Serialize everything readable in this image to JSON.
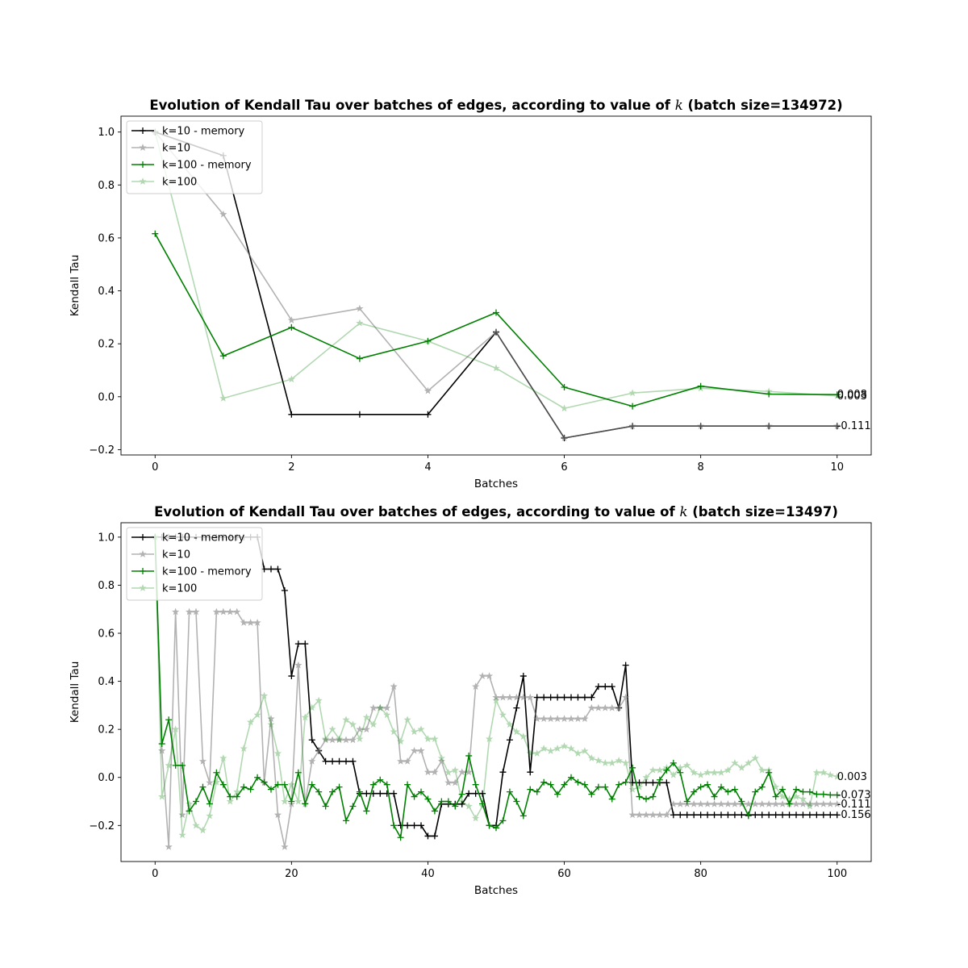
{
  "chart_data": [
    {
      "type": "line",
      "title": "Evolution of Kendall Tau over batches of edges, according to value of",
      "title_k": "k",
      "title_suffix": "(batch size=134972)",
      "xlabel": "Batches",
      "ylabel": "Kendall Tau",
      "xlim": [
        -0.5,
        10.5
      ],
      "ylim": [
        -0.22,
        1.06
      ],
      "xticks": [
        0,
        2,
        4,
        6,
        8,
        10
      ],
      "yticks": [
        -0.2,
        0.0,
        0.2,
        0.4,
        0.6,
        0.8,
        1.0
      ],
      "xtick_labels": [
        "0",
        "2",
        "4",
        "6",
        "8",
        "10"
      ],
      "ytick_labels": [
        "−0.2",
        "0.0",
        "0.2",
        "0.4",
        "0.6",
        "0.8",
        "1.0"
      ],
      "legend": "top-left",
      "x": [
        0,
        1,
        2,
        3,
        4,
        5,
        6,
        7,
        8,
        9,
        10
      ],
      "series": [
        {
          "name": "k=10 - memory",
          "color": "#000000",
          "opacity": 1.0,
          "marker": "plus",
          "values": [
            1.0,
            0.911,
            -0.067,
            -0.067,
            -0.067,
            0.244,
            -0.156,
            -0.111,
            -0.111,
            -0.111,
            -0.111
          ]
        },
        {
          "name": "k=10",
          "color": "#808080",
          "opacity": 0.6,
          "marker": "star",
          "values": [
            1.0,
            0.689,
            0.289,
            0.333,
            0.022,
            0.244,
            -0.156,
            -0.111,
            -0.111,
            -0.111,
            -0.111
          ]
        },
        {
          "name": "k=100 - memory",
          "color": "#008000",
          "opacity": 1.0,
          "marker": "plus",
          "values": [
            0.616,
            0.154,
            0.262,
            0.144,
            0.21,
            0.318,
            0.036,
            -0.036,
            0.04,
            0.01,
            0.008
          ]
        },
        {
          "name": "k=100",
          "color": "#008000",
          "opacity": 0.3,
          "marker": "star",
          "values": [
            1.0,
            -0.006,
            0.066,
            0.278,
            0.21,
            0.108,
            -0.044,
            0.014,
            0.032,
            0.02,
            0.003
          ]
        }
      ],
      "end_labels": [
        {
          "text": "0.008",
          "y": 0.008
        },
        {
          "text": "0.003",
          "y": 0.003
        },
        {
          "text": "-0.111",
          "y": -0.111
        }
      ]
    },
    {
      "type": "line",
      "title": "Evolution of Kendall Tau over batches of edges, according to value of",
      "title_k": "k",
      "title_suffix": "(batch size=13497)",
      "xlabel": "Batches",
      "ylabel": "Kendall Tau",
      "xlim": [
        -5,
        105
      ],
      "ylim": [
        -0.35,
        1.06
      ],
      "xticks": [
        0,
        20,
        40,
        60,
        80,
        100
      ],
      "yticks": [
        -0.2,
        0.0,
        0.2,
        0.4,
        0.6,
        0.8,
        1.0
      ],
      "xtick_labels": [
        "0",
        "20",
        "40",
        "60",
        "80",
        "100"
      ],
      "ytick_labels": [
        "−0.2",
        "0.0",
        "0.2",
        "0.4",
        "0.6",
        "0.8",
        "1.0"
      ],
      "legend": "top-left",
      "x_start": 0,
      "series": [
        {
          "name": "k=10 - memory",
          "color": "#000000",
          "opacity": 1.0,
          "marker": "plus",
          "values": [
            1.0,
            1.0,
            1.0,
            1.0,
            1.0,
            1.0,
            1.0,
            1.0,
            1.0,
            1.0,
            1.0,
            1.0,
            1.0,
            1.0,
            1.0,
            1.0,
            0.867,
            0.867,
            0.867,
            0.778,
            0.422,
            0.556,
            0.556,
            0.156,
            0.111,
            0.067,
            0.067,
            0.067,
            0.067,
            0.067,
            -0.067,
            -0.067,
            -0.067,
            -0.067,
            -0.067,
            -0.067,
            -0.2,
            -0.2,
            -0.2,
            -0.2,
            -0.244,
            -0.244,
            -0.111,
            -0.111,
            -0.111,
            -0.111,
            -0.067,
            -0.067,
            -0.067,
            -0.2,
            -0.2,
            0.022,
            0.156,
            0.289,
            0.422,
            0.022,
            0.333,
            0.333,
            0.333,
            0.333,
            0.333,
            0.333,
            0.333,
            0.333,
            0.333,
            0.378,
            0.378,
            0.378,
            0.289,
            0.467,
            -0.022,
            -0.022,
            -0.022,
            -0.022,
            -0.022,
            -0.022,
            -0.156,
            -0.156,
            -0.156,
            -0.156,
            -0.156,
            -0.156,
            -0.156,
            -0.156,
            -0.156,
            -0.156,
            -0.156,
            -0.156,
            -0.156,
            -0.156,
            -0.156,
            -0.156,
            -0.156,
            -0.156,
            -0.156,
            -0.156,
            -0.156,
            -0.156,
            -0.156,
            -0.156,
            -0.156
          ]
        },
        {
          "name": "k=10",
          "color": "#808080",
          "opacity": 0.6,
          "marker": "star",
          "values": [
            1.0,
            0.111,
            -0.289,
            0.689,
            -0.156,
            0.689,
            0.689,
            0.067,
            -0.022,
            0.689,
            0.689,
            0.689,
            0.689,
            0.644,
            0.644,
            0.644,
            -0.022,
            0.244,
            -0.156,
            -0.289,
            -0.111,
            0.467,
            -0.111,
            0.067,
            0.111,
            0.156,
            0.156,
            0.156,
            0.156,
            0.156,
            0.2,
            0.2,
            0.289,
            0.289,
            0.289,
            0.378,
            0.067,
            0.067,
            0.111,
            0.111,
            0.022,
            0.022,
            0.067,
            -0.022,
            -0.022,
            0.022,
            0.022,
            0.378,
            0.422,
            0.422,
            0.333,
            0.333,
            0.333,
            0.333,
            0.333,
            0.333,
            0.244,
            0.244,
            0.244,
            0.244,
            0.244,
            0.244,
            0.244,
            0.244,
            0.289,
            0.289,
            0.289,
            0.289,
            0.289,
            0.333,
            -0.156,
            -0.156,
            -0.156,
            -0.156,
            -0.156,
            -0.156,
            -0.111,
            -0.111,
            -0.111,
            -0.111,
            -0.111,
            -0.111,
            -0.111,
            -0.111,
            -0.111,
            -0.111,
            -0.111,
            -0.111,
            -0.111,
            -0.111,
            -0.111,
            -0.111,
            -0.111,
            -0.111,
            -0.111,
            -0.111,
            -0.111,
            -0.111,
            -0.111,
            -0.111,
            -0.111
          ]
        },
        {
          "name": "k=100 - memory",
          "color": "#008000",
          "opacity": 1.0,
          "marker": "plus",
          "values": [
            1.0,
            0.14,
            0.24,
            0.05,
            0.05,
            -0.14,
            -0.1,
            -0.04,
            -0.11,
            0.02,
            -0.03,
            -0.08,
            -0.08,
            -0.04,
            -0.05,
            0.0,
            -0.02,
            -0.05,
            -0.03,
            -0.03,
            -0.1,
            0.02,
            -0.11,
            -0.03,
            -0.06,
            -0.12,
            -0.06,
            -0.04,
            -0.18,
            -0.12,
            -0.06,
            -0.14,
            -0.03,
            -0.01,
            -0.03,
            -0.2,
            -0.25,
            -0.03,
            -0.08,
            -0.06,
            -0.09,
            -0.14,
            -0.1,
            -0.1,
            -0.12,
            -0.07,
            0.09,
            -0.03,
            -0.11,
            -0.2,
            -0.21,
            -0.18,
            -0.06,
            -0.1,
            -0.16,
            -0.05,
            -0.06,
            -0.02,
            -0.03,
            -0.07,
            -0.03,
            0.0,
            -0.02,
            -0.03,
            -0.07,
            -0.04,
            -0.04,
            -0.09,
            -0.03,
            -0.02,
            0.04,
            -0.08,
            -0.09,
            -0.08,
            -0.01,
            0.03,
            0.06,
            0.02,
            -0.1,
            -0.06,
            -0.04,
            -0.03,
            -0.08,
            -0.04,
            -0.06,
            -0.05,
            -0.1,
            -0.16,
            -0.06,
            -0.04,
            0.02,
            -0.08,
            -0.05,
            -0.11,
            -0.05,
            -0.06,
            -0.06,
            -0.07,
            -0.07,
            -0.073,
            -0.073
          ]
        },
        {
          "name": "k=100",
          "color": "#008000",
          "opacity": 0.3,
          "marker": "star",
          "values": [
            1.0,
            -0.08,
            0.05,
            0.2,
            -0.24,
            -0.11,
            -0.2,
            -0.22,
            -0.16,
            -0.02,
            0.08,
            -0.1,
            -0.06,
            0.12,
            0.23,
            0.26,
            0.34,
            0.22,
            0.1,
            -0.1,
            -0.03,
            -0.1,
            0.25,
            0.29,
            0.32,
            0.16,
            0.2,
            0.16,
            0.24,
            0.22,
            0.16,
            0.25,
            0.22,
            0.29,
            0.26,
            0.19,
            0.15,
            0.24,
            0.19,
            0.2,
            0.16,
            0.16,
            0.08,
            0.02,
            0.03,
            -0.1,
            -0.12,
            -0.17,
            -0.12,
            0.16,
            0.32,
            0.26,
            0.22,
            0.19,
            0.17,
            0.1,
            0.1,
            0.12,
            0.11,
            0.12,
            0.13,
            0.12,
            0.1,
            0.11,
            0.08,
            0.07,
            0.06,
            0.06,
            0.07,
            0.06,
            -0.05,
            -0.04,
            0.0,
            0.03,
            0.03,
            0.04,
            0.01,
            0.04,
            0.05,
            0.02,
            0.01,
            0.02,
            0.02,
            0.02,
            0.03,
            0.06,
            0.04,
            0.06,
            0.08,
            0.03,
            0.03,
            -0.04,
            -0.08,
            -0.09,
            -0.08,
            -0.09,
            -0.12,
            0.02,
            0.02,
            0.01,
            0.003
          ]
        }
      ],
      "end_labels": [
        {
          "text": "0.003",
          "y": 0.003
        },
        {
          "text": "-0.073",
          "y": -0.073
        },
        {
          "text": "-0.111",
          "y": -0.111
        },
        {
          "text": "-0.156",
          "y": -0.156
        }
      ]
    }
  ]
}
